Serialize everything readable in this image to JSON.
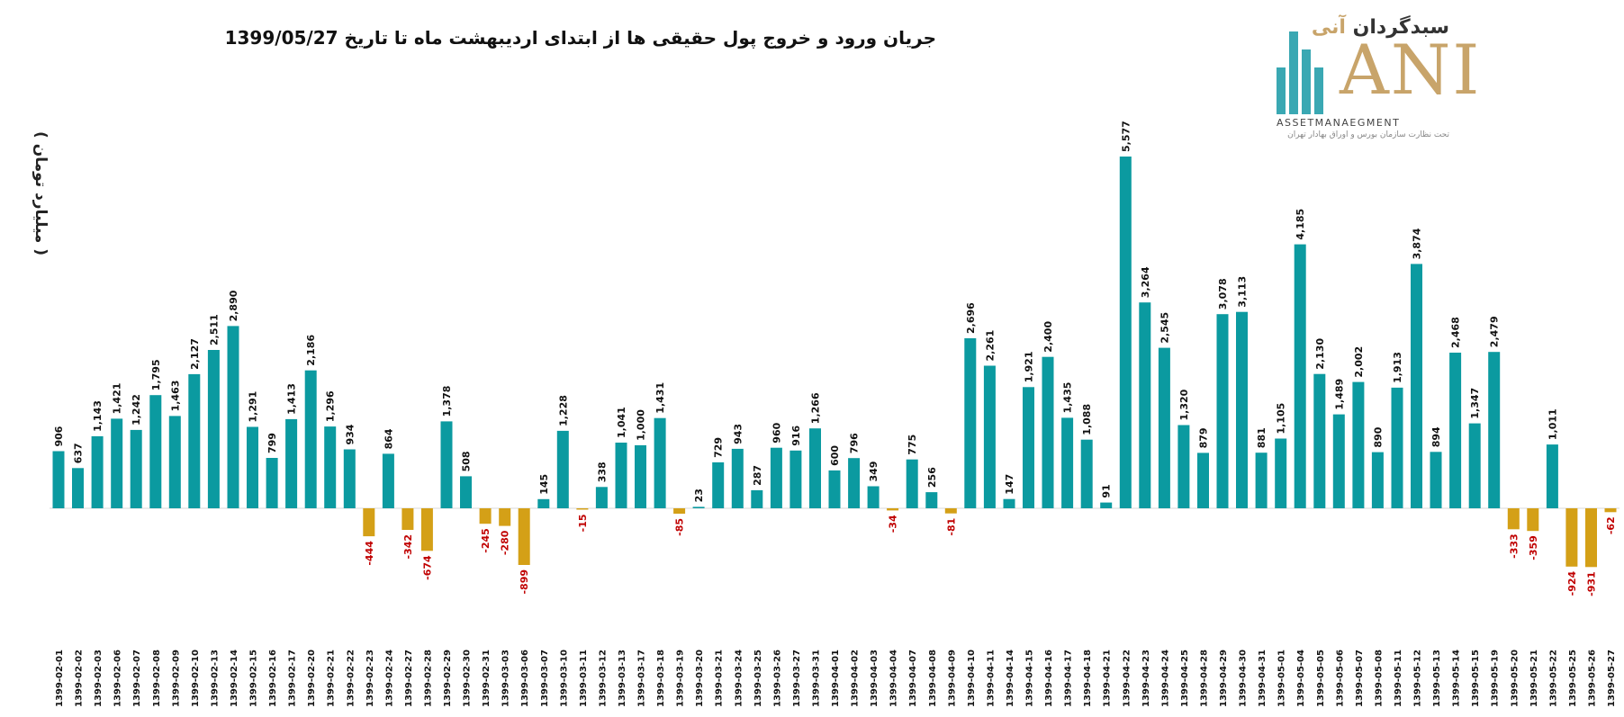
{
  "logo": {
    "brand_fa_main": "سبدگردان ",
    "brand_fa_accent": "آنی",
    "brand_en": "ANI",
    "brand_sub": "ASSETMANAEGMENT",
    "brand_sub_fa": "تحت نظارت سازمان بورس و اوراق بهادار تهران"
  },
  "chart_data": {
    "type": "bar",
    "title": "جریان ورود و خروج پول حقیقی ها از ابتدای اردیبهشت ماه تا تاریخ 1399/05/27",
    "xlabel": "",
    "ylabel": "( میلیارد تومان )",
    "positive_color": "#0b9aa0",
    "negative_color": "#d4a017",
    "negative_label_color": "#c00000",
    "ylim": [
      -1600,
      6200
    ],
    "categories": [
      "1399-02-01",
      "1399-02-02",
      "1399-02-03",
      "1399-02-06",
      "1399-02-07",
      "1399-02-08",
      "1399-02-09",
      "1399-02-10",
      "1399-02-13",
      "1399-02-14",
      "1399-02-15",
      "1399-02-16",
      "1399-02-17",
      "1399-02-20",
      "1399-02-21",
      "1399-02-22",
      "1399-02-23",
      "1399-02-24",
      "1399-02-27",
      "1399-02-28",
      "1399-02-29",
      "1399-02-30",
      "1399-02-31",
      "1399-03-03",
      "1399-03-06",
      "1399-03-07",
      "1399-03-10",
      "1399-03-11",
      "1399-03-12",
      "1399-03-13",
      "1399-03-17",
      "1399-03-18",
      "1399-03-19",
      "1399-03-20",
      "1399-03-21",
      "1399-03-24",
      "1399-03-25",
      "1399-03-26",
      "1399-03-27",
      "1399-03-31",
      "1399-04-01",
      "1399-04-02",
      "1399-04-03",
      "1399-04-04",
      "1399-04-07",
      "1399-04-08",
      "1399-04-09",
      "1399-04-10",
      "1399-04-11",
      "1399-04-14",
      "1399-04-15",
      "1399-04-16",
      "1399-04-17",
      "1399-04-18",
      "1399-04-21",
      "1399-04-22",
      "1399-04-23",
      "1399-04-24",
      "1399-04-25",
      "1399-04-28",
      "1399-04-29",
      "1399-04-30",
      "1399-04-31",
      "1399-05-01",
      "1399-05-04",
      "1399-05-05",
      "1399-05-06",
      "1399-05-07",
      "1399-05-08",
      "1399-05-11",
      "1399-05-12",
      "1399-05-13",
      "1399-05-14",
      "1399-05-15",
      "1399-05-19",
      "1399-05-20",
      "1399-05-21",
      "1399-05-22",
      "1399-05-25",
      "1399-05-26",
      "1399-05-27"
    ],
    "values": [
      906,
      637,
      1143,
      1421,
      1242,
      1795,
      1463,
      2127,
      2511,
      2890,
      1291,
      799,
      1413,
      2186,
      1296,
      934,
      -444,
      864,
      -342,
      -674,
      1378,
      508,
      -245,
      -280,
      -899,
      145,
      1228,
      -15,
      338,
      1041,
      1000,
      1431,
      -85,
      23,
      729,
      943,
      287,
      960,
      916,
      1266,
      600,
      796,
      349,
      -34,
      775,
      256,
      -81,
      2696,
      2261,
      147,
      1921,
      2400,
      1435,
      1088,
      91,
      5577,
      3264,
      2545,
      1320,
      879,
      3078,
      3113,
      881,
      1105,
      4185,
      2130,
      1489,
      2002,
      890,
      1913,
      3874,
      894,
      2468,
      1347,
      2479,
      -333,
      -359,
      1011,
      -924,
      -931,
      -62
    ]
  }
}
